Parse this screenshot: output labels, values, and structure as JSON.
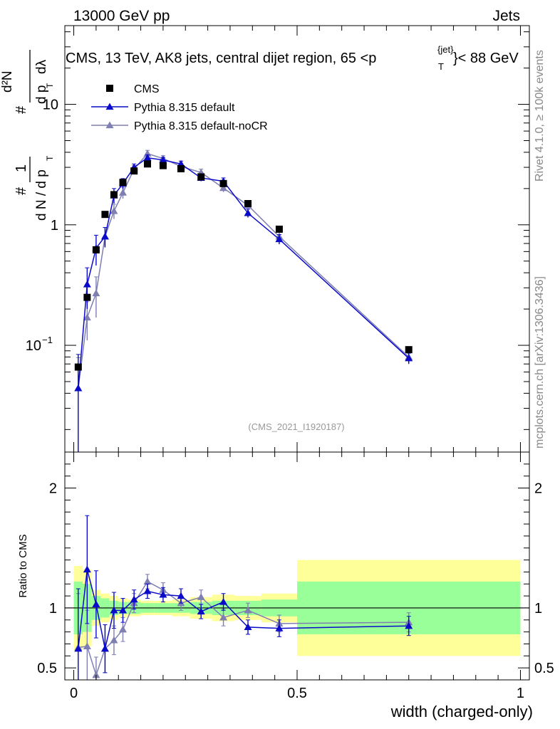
{
  "header": {
    "energy": "13000 GeV pp",
    "group": "Jets"
  },
  "side_texts": {
    "rivet": "Rivet 4.1.0, ≥ 100k events",
    "mcplots": "mcplots.cern.ch [arXiv:1306.3436]"
  },
  "ylabel_main": {
    "hash": "#",
    "one": "1",
    "frac": "d N / d p",
    "T": "T",
    "hash2": "#",
    "num": "d²N",
    "den": "d p",
    "dl": "dλ"
  },
  "chart_data": {
    "type": "scatter",
    "title": {
      "main": "CMS, 13 TeV, AK8 jets, central dijet region, 65 <p",
      "sub": "T",
      "sup": "{jet}",
      "tail": "}< 88 GeV"
    },
    "analysis_label": "(CMS_2021_I1920187)",
    "xlabel": "width (charged-only)",
    "ylabel_ratio": "Ratio to CMS",
    "xlim": [
      -0.02,
      1.02
    ],
    "ylim_main_log": [
      0.013,
      45
    ],
    "ylim_ratio": [
      0.4,
      2.3
    ],
    "x_ticks": [
      "0",
      "0.5",
      "1"
    ],
    "main_y_ticks": [
      {
        "value": 0.1,
        "base": "10",
        "exp": "−1"
      },
      {
        "value": 1,
        "label": "1"
      },
      {
        "value": 10,
        "label": "10"
      }
    ],
    "ratio_y_ticks": [
      {
        "value": 0.5,
        "label": "0.5"
      },
      {
        "value": 1,
        "label": "1"
      },
      {
        "value": 2,
        "label": "2"
      }
    ],
    "legend": [
      {
        "name": "CMS",
        "marker": "square",
        "color": "#000000"
      },
      {
        "name": "Pythia 8.315 default",
        "marker": "triangle",
        "color": "#0a0ac8"
      },
      {
        "name": "Pythia 8.315 default-noCR",
        "marker": "triangle",
        "color": "#7f7fb2"
      }
    ],
    "cms": {
      "x": [
        0.01,
        0.03,
        0.05,
        0.07,
        0.09,
        0.11,
        0.135,
        0.165,
        0.2,
        0.24,
        0.285,
        0.335,
        0.39,
        0.46,
        0.75
      ],
      "y": [
        0.066,
        0.25,
        0.62,
        1.22,
        1.78,
        2.25,
        2.8,
        3.2,
        3.1,
        2.92,
        2.5,
        2.2,
        1.5,
        0.92,
        0.092
      ],
      "bins": [
        [
          0,
          0.02
        ],
        [
          0.02,
          0.04
        ],
        [
          0.04,
          0.06
        ],
        [
          0.06,
          0.08
        ],
        [
          0.08,
          0.1
        ],
        [
          0.1,
          0.12
        ],
        [
          0.12,
          0.15
        ],
        [
          0.15,
          0.18
        ],
        [
          0.18,
          0.22
        ],
        [
          0.22,
          0.26
        ],
        [
          0.26,
          0.31
        ],
        [
          0.31,
          0.36
        ],
        [
          0.36,
          0.42
        ],
        [
          0.42,
          0.5
        ],
        [
          0.5,
          1.0
        ]
      ],
      "band_inner": [
        0.22,
        0.2,
        0.1,
        0.08,
        0.06,
        0.05,
        0.05,
        0.04,
        0.04,
        0.04,
        0.05,
        0.06,
        0.06,
        0.07,
        0.22
      ],
      "band_outer": [
        0.35,
        0.32,
        0.15,
        0.12,
        0.1,
        0.08,
        0.07,
        0.06,
        0.06,
        0.07,
        0.09,
        0.11,
        0.1,
        0.12,
        0.4
      ]
    },
    "pythia_default": {
      "y": [
        0.044,
        0.32,
        0.64,
        0.8,
        1.75,
        2.2,
        3.0,
        3.6,
        3.45,
        3.2,
        2.45,
        2.3,
        1.25,
        0.76,
        0.078
      ],
      "err": [
        0.04,
        0.12,
        0.18,
        0.15,
        0.25,
        0.22,
        0.2,
        0.2,
        0.18,
        0.18,
        0.15,
        0.15,
        0.1,
        0.07,
        0.008
      ]
    },
    "pythia_nocr": {
      "y": [
        0.044,
        0.17,
        0.27,
        0.8,
        1.3,
        1.85,
        2.9,
        3.9,
        3.55,
        3.05,
        2.72,
        2.02,
        1.45,
        0.8,
        0.08
      ],
      "err": [
        0.035,
        0.06,
        0.1,
        0.15,
        0.18,
        0.2,
        0.2,
        0.25,
        0.2,
        0.2,
        0.18,
        0.15,
        0.1,
        0.07,
        0.008
      ]
    },
    "ratio_default": {
      "values": [
        0.66,
        1.32,
        1.03,
        0.66,
        0.98,
        0.98,
        1.07,
        1.14,
        1.11,
        1.1,
        0.97,
        1.05,
        0.84,
        0.83,
        0.85
      ],
      "err": [
        0.5,
        0.45,
        0.28,
        0.2,
        0.15,
        0.1,
        0.08,
        0.06,
        0.06,
        0.06,
        0.06,
        0.07,
        0.06,
        0.07,
        0.08
      ]
    },
    "ratio_nocr": {
      "values": [
        0.67,
        0.68,
        0.44,
        0.66,
        0.73,
        0.82,
        1.04,
        1.22,
        1.15,
        1.04,
        1.09,
        0.92,
        0.98,
        0.87,
        0.88
      ],
      "err": [
        0.45,
        0.3,
        0.15,
        0.2,
        0.12,
        0.1,
        0.08,
        0.06,
        0.06,
        0.06,
        0.06,
        0.07,
        0.06,
        0.07,
        0.08
      ]
    },
    "colors": {
      "band_inner": "#99ff99",
      "band_outer": "#ffff99",
      "default": "#0a0ac8",
      "nocr": "#7f7fb2",
      "cms": "#000000"
    }
  }
}
